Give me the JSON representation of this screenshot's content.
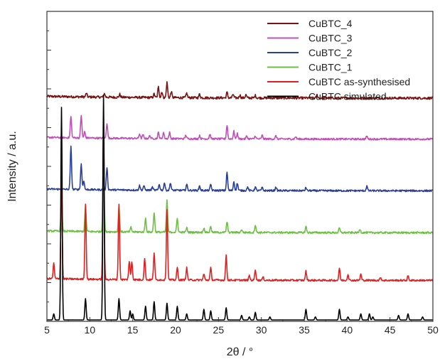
{
  "chart_data": {
    "type": "line",
    "title": "",
    "xlabel": "2θ / °",
    "ylabel": "Intensity / a.u.",
    "xlim": [
      5,
      50
    ],
    "x_ticks": [
      "5",
      "10",
      "15",
      "20",
      "25",
      "30",
      "35",
      "40",
      "45",
      "50"
    ],
    "y_ticks_labeled": false,
    "legend_position": "top-right",
    "series": [
      {
        "name": "CuBTC_4",
        "color": "#7a1212",
        "baseline": 0.73,
        "noise": 0.004,
        "peaks": [
          [
            9.6,
            0.012
          ],
          [
            11.7,
            0.012
          ],
          [
            13.5,
            0.01
          ],
          [
            17.5,
            0.012
          ],
          [
            18.0,
            0.035
          ],
          [
            18.4,
            0.02
          ],
          [
            19.0,
            0.05
          ],
          [
            19.5,
            0.02
          ],
          [
            21.3,
            0.015
          ],
          [
            22.8,
            0.012
          ],
          [
            26.0,
            0.018
          ],
          [
            26.7,
            0.012
          ],
          [
            27.5,
            0.01
          ],
          [
            28.2,
            0.01
          ],
          [
            29.3,
            0.008
          ],
          [
            36.5,
            0.01
          ]
        ]
      },
      {
        "name": "CuBTC_3",
        "color": "#c050b8",
        "baseline": 0.595,
        "noise": 0.003,
        "peaks": [
          [
            7.8,
            0.07
          ],
          [
            9.0,
            0.075
          ],
          [
            9.4,
            0.02
          ],
          [
            12.0,
            0.05
          ],
          [
            15.8,
            0.015
          ],
          [
            16.2,
            0.012
          ],
          [
            17.0,
            0.01
          ],
          [
            18.0,
            0.02
          ],
          [
            18.6,
            0.02
          ],
          [
            19.3,
            0.02
          ],
          [
            21.2,
            0.012
          ],
          [
            22.8,
            0.01
          ],
          [
            24.0,
            0.015
          ],
          [
            26.0,
            0.045
          ],
          [
            26.8,
            0.025
          ],
          [
            27.2,
            0.018
          ],
          [
            28.3,
            0.01
          ],
          [
            29.3,
            0.01
          ],
          [
            30.1,
            0.012
          ],
          [
            31.7,
            0.01
          ],
          [
            34.0,
            0.008
          ],
          [
            42.3,
            0.01
          ]
        ]
      },
      {
        "name": "CuBTC_2",
        "color": "#2a3f9a",
        "baseline": 0.425,
        "noise": 0.003,
        "peaks": [
          [
            7.8,
            0.14
          ],
          [
            9.0,
            0.085
          ],
          [
            9.3,
            0.03
          ],
          [
            12.0,
            0.075
          ],
          [
            15.8,
            0.015
          ],
          [
            16.3,
            0.015
          ],
          [
            17.3,
            0.01
          ],
          [
            18.1,
            0.02
          ],
          [
            18.7,
            0.025
          ],
          [
            19.4,
            0.025
          ],
          [
            21.3,
            0.02
          ],
          [
            22.8,
            0.015
          ],
          [
            24.1,
            0.02
          ],
          [
            26.0,
            0.06
          ],
          [
            26.8,
            0.03
          ],
          [
            27.2,
            0.025
          ],
          [
            28.4,
            0.012
          ],
          [
            29.3,
            0.012
          ],
          [
            30.1,
            0.01
          ],
          [
            31.7,
            0.012
          ],
          [
            35.2,
            0.01
          ],
          [
            42.3,
            0.015
          ]
        ]
      },
      {
        "name": "CuBTC_1",
        "color": "#6cc043",
        "baseline": 0.287,
        "noise": 0.003,
        "peaks": [
          [
            6.7,
            0.115
          ],
          [
            9.5,
            0.085
          ],
          [
            11.6,
            0.3
          ],
          [
            13.4,
            0.085
          ],
          [
            14.8,
            0.015
          ],
          [
            16.5,
            0.045
          ],
          [
            17.5,
            0.065
          ],
          [
            19.0,
            0.105
          ],
          [
            20.2,
            0.045
          ],
          [
            21.3,
            0.015
          ],
          [
            23.3,
            0.015
          ],
          [
            24.1,
            0.02
          ],
          [
            26.0,
            0.035
          ],
          [
            27.7,
            0.01
          ],
          [
            29.3,
            0.025
          ],
          [
            35.2,
            0.02
          ],
          [
            39.1,
            0.015
          ],
          [
            41.5,
            0.012
          ]
        ]
      },
      {
        "name": "CuBTC as-synthesised",
        "color": "#e02020",
        "baseline": 0.13,
        "noise": 0.003,
        "peaks": [
          [
            5.8,
            0.05
          ],
          [
            6.7,
            0.35
          ],
          [
            9.5,
            0.25
          ],
          [
            11.6,
            0.52
          ],
          [
            13.4,
            0.25
          ],
          [
            14.6,
            0.06
          ],
          [
            14.9,
            0.06
          ],
          [
            16.4,
            0.07
          ],
          [
            17.5,
            0.09
          ],
          [
            19.0,
            0.23
          ],
          [
            20.2,
            0.04
          ],
          [
            21.3,
            0.04
          ],
          [
            23.3,
            0.02
          ],
          [
            24.1,
            0.04
          ],
          [
            25.9,
            0.08
          ],
          [
            28.6,
            0.015
          ],
          [
            29.3,
            0.035
          ],
          [
            30.2,
            0.01
          ],
          [
            35.2,
            0.03
          ],
          [
            39.1,
            0.04
          ],
          [
            40.1,
            0.02
          ],
          [
            41.6,
            0.02
          ],
          [
            43.9,
            0.01
          ],
          [
            47.1,
            0.015
          ]
        ]
      },
      {
        "name": "CuBTC simulated",
        "color": "#000000",
        "baseline": 0.0,
        "noise": 0.0,
        "peaks": [
          [
            5.8,
            0.02
          ],
          [
            6.7,
            0.7
          ],
          [
            9.5,
            0.07
          ],
          [
            11.6,
            0.74
          ],
          [
            13.4,
            0.07
          ],
          [
            14.7,
            0.03
          ],
          [
            15.0,
            0.02
          ],
          [
            16.5,
            0.045
          ],
          [
            17.5,
            0.06
          ],
          [
            19.0,
            0.055
          ],
          [
            20.2,
            0.045
          ],
          [
            21.3,
            0.02
          ],
          [
            23.3,
            0.035
          ],
          [
            24.1,
            0.03
          ],
          [
            25.9,
            0.04
          ],
          [
            27.7,
            0.015
          ],
          [
            28.6,
            0.01
          ],
          [
            29.3,
            0.025
          ],
          [
            31.0,
            0.01
          ],
          [
            35.2,
            0.035
          ],
          [
            36.3,
            0.01
          ],
          [
            39.1,
            0.035
          ],
          [
            40.1,
            0.01
          ],
          [
            41.6,
            0.02
          ],
          [
            42.6,
            0.02
          ],
          [
            43.0,
            0.01
          ],
          [
            46.0,
            0.015
          ],
          [
            47.1,
            0.02
          ],
          [
            48.8,
            0.01
          ]
        ]
      }
    ]
  }
}
